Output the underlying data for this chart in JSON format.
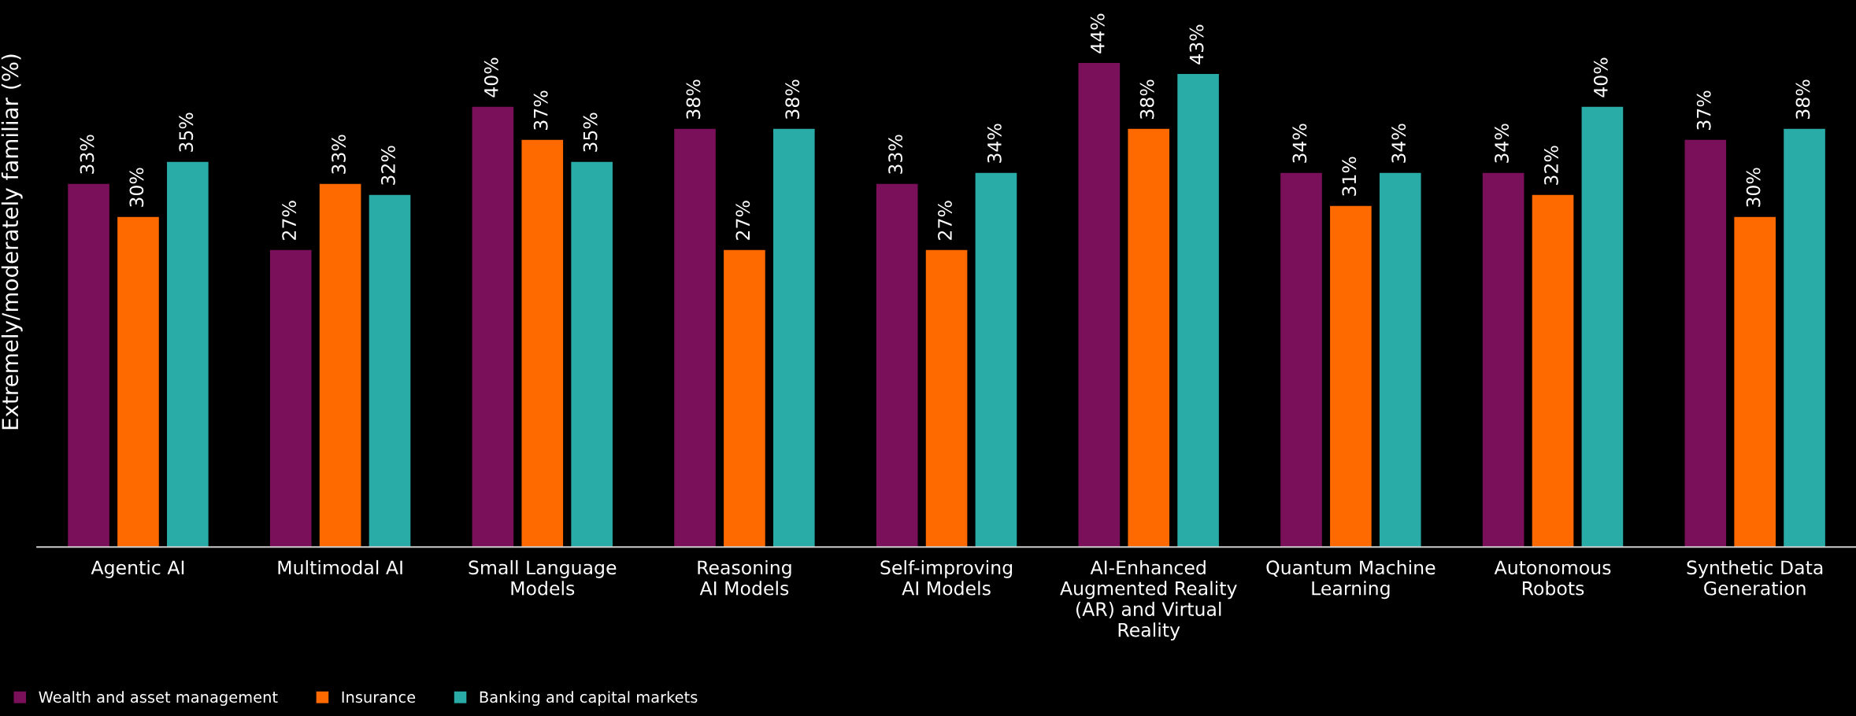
{
  "chart_data": {
    "type": "bar",
    "ylabel": "Extremely/moderately familiar (%)",
    "categories": [
      "Agentic AI",
      "Multimodal AI",
      "Small Language\nModels",
      "Reasoning\nAI Models",
      "Self-improving\nAI Models",
      "AI-Enhanced\nAugmented Reality\n(AR) and Virtual\nReality",
      "Quantum Machine\nLearning",
      "Autonomous\nRobots",
      "Synthetic Data\nGeneration"
    ],
    "series": [
      {
        "name": "Wealth and asset management",
        "color": "#7a1059",
        "values": [
          33,
          27,
          40,
          38,
          33,
          44,
          34,
          34,
          37
        ],
        "value_labels": [
          "33%",
          "27%",
          "40%",
          "38%",
          "33%",
          "44%",
          "34%",
          "34%",
          "37%"
        ]
      },
      {
        "name": "Insurance",
        "color": "#ff6a00",
        "values": [
          30,
          33,
          37,
          27,
          27,
          38,
          31,
          32,
          30
        ],
        "value_labels": [
          "30%",
          "33%",
          "37%",
          "27%",
          "27%",
          "38%",
          "31%",
          "32%",
          "30%"
        ]
      },
      {
        "name": "Banking and capital markets",
        "color": "#29aca8",
        "values": [
          35,
          32,
          35,
          38,
          34,
          43,
          34,
          40,
          38
        ],
        "value_labels": [
          "35%",
          "32%",
          "35%",
          "38%",
          "34%",
          "43%",
          "34%",
          "40%",
          "38%"
        ]
      }
    ],
    "legend": "bottom left",
    "grid": false
  }
}
